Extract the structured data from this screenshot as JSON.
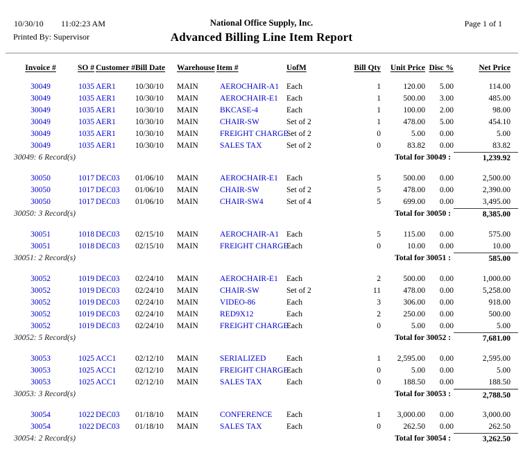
{
  "header": {
    "date": "10/30/10",
    "time": "11:02:23 AM",
    "company": "National Office Supply, Inc.",
    "page_label": "Page 1 of 1",
    "printed_by": "Printed By: Supervisor",
    "title": "Advanced Billing Line Item Report"
  },
  "colors": {
    "link_blue": "#0000CC",
    "divider_gray": "#909090"
  },
  "table": {
    "columns": [
      "Invoice #",
      "SO #",
      "Customer #",
      "Bill Date",
      "Warehouse",
      "Item #",
      "UofM",
      "Bill Qty",
      "Unit Price",
      "Disc %",
      "Net Price"
    ],
    "groups": [
      {
        "invoice": "30049",
        "rows": [
          [
            "30049",
            "1035",
            "AER1",
            "10/30/10",
            "MAIN",
            "AEROCHAIR-A1",
            "Each",
            "1",
            "120.00",
            "5.00",
            "114.00"
          ],
          [
            "30049",
            "1035",
            "AER1",
            "10/30/10",
            "MAIN",
            "AEROCHAIR-E1",
            "Each",
            "1",
            "500.00",
            "3.00",
            "485.00"
          ],
          [
            "30049",
            "1035",
            "AER1",
            "10/30/10",
            "MAIN",
            "BKCASE-4",
            "Each",
            "1",
            "100.00",
            "2.00",
            "98.00"
          ],
          [
            "30049",
            "1035",
            "AER1",
            "10/30/10",
            "MAIN",
            "CHAIR-SW",
            "Set of 2",
            "1",
            "478.00",
            "5.00",
            "454.10"
          ],
          [
            "30049",
            "1035",
            "AER1",
            "10/30/10",
            "MAIN",
            "FREIGHT CHARGE",
            "Set of 2",
            "0",
            "5.00",
            "0.00",
            "5.00"
          ],
          [
            "30049",
            "1035",
            "AER1",
            "10/30/10",
            "MAIN",
            "SALES TAX",
            "Set of 2",
            "0",
            "83.82",
            "0.00",
            "83.82"
          ]
        ],
        "record_count_label": "30049: 6 Record(s)",
        "total_label": "Total for 30049 :",
        "total_value": "1,239.92",
        "total_rule": "thin"
      },
      {
        "invoice": "30050",
        "rows": [
          [
            "30050",
            "1017",
            "DEC03",
            "01/06/10",
            "MAIN",
            "AEROCHAIR-E1",
            "Each",
            "5",
            "500.00",
            "0.00",
            "2,500.00"
          ],
          [
            "30050",
            "1017",
            "DEC03",
            "01/06/10",
            "MAIN",
            "CHAIR-SW",
            "Set of 2",
            "5",
            "478.00",
            "0.00",
            "2,390.00"
          ],
          [
            "30050",
            "1017",
            "DEC03",
            "01/06/10",
            "MAIN",
            "CHAIR-SW4",
            "Set of 4",
            "5",
            "699.00",
            "0.00",
            "3,495.00"
          ]
        ],
        "record_count_label": "30050: 3 Record(s)",
        "total_label": "Total for 30050 :",
        "total_value": "8,385.00",
        "total_rule": "thin"
      },
      {
        "invoice": "30051",
        "rows": [
          [
            "30051",
            "1018",
            "DEC03",
            "02/15/10",
            "MAIN",
            "AEROCHAIR-A1",
            "Each",
            "5",
            "115.00",
            "0.00",
            "575.00"
          ],
          [
            "30051",
            "1018",
            "DEC03",
            "02/15/10",
            "MAIN",
            "FREIGHT CHARGE",
            "Each",
            "0",
            "10.00",
            "0.00",
            "10.00"
          ]
        ],
        "record_count_label": "30051: 2 Record(s)",
        "total_label": "Total for 30051 :",
        "total_value": "585.00",
        "total_rule": "thin"
      },
      {
        "invoice": "30052",
        "rows": [
          [
            "30052",
            "1019",
            "DEC03",
            "02/24/10",
            "MAIN",
            "AEROCHAIR-E1",
            "Each",
            "2",
            "500.00",
            "0.00",
            "1,000.00"
          ],
          [
            "30052",
            "1019",
            "DEC03",
            "02/24/10",
            "MAIN",
            "CHAIR-SW",
            "Set of 2",
            "11",
            "478.00",
            "0.00",
            "5,258.00"
          ],
          [
            "30052",
            "1019",
            "DEC03",
            "02/24/10",
            "MAIN",
            "VIDEO-86",
            "Each",
            "3",
            "306.00",
            "0.00",
            "918.00"
          ],
          [
            "30052",
            "1019",
            "DEC03",
            "02/24/10",
            "MAIN",
            "RED9X12",
            "Each",
            "2",
            "250.00",
            "0.00",
            "500.00"
          ],
          [
            "30052",
            "1019",
            "DEC03",
            "02/24/10",
            "MAIN",
            "FREIGHT CHARGE",
            "Each",
            "0",
            "5.00",
            "0.00",
            "5.00"
          ]
        ],
        "record_count_label": "30052: 5 Record(s)",
        "total_label": "Total for 30052 :",
        "total_value": "7,681.00",
        "total_rule": "thin"
      },
      {
        "invoice": "30053",
        "rows": [
          [
            "30053",
            "1025",
            "ACC1",
            "02/12/10",
            "MAIN",
            "SERIALIZED",
            "Each",
            "1",
            "2,595.00",
            "0.00",
            "2,595.00"
          ],
          [
            "30053",
            "1025",
            "ACC1",
            "02/12/10",
            "MAIN",
            "FREIGHT CHARGE",
            "Each",
            "0",
            "5.00",
            "0.00",
            "5.00"
          ],
          [
            "30053",
            "1025",
            "ACC1",
            "02/12/10",
            "MAIN",
            "SALES TAX",
            "Each",
            "0",
            "188.50",
            "0.00",
            "188.50"
          ]
        ],
        "record_count_label": "30053: 3 Record(s)",
        "total_label": "Total for 30053 :",
        "total_value": "2,788.50",
        "total_rule": "thick"
      },
      {
        "invoice": "30054",
        "rows": [
          [
            "30054",
            "1022",
            "DEC03",
            "01/18/10",
            "MAIN",
            "CONFERENCE",
            "Each",
            "1",
            "3,000.00",
            "0.00",
            "3,000.00"
          ],
          [
            "30054",
            "1022",
            "DEC03",
            "01/18/10",
            "MAIN",
            "SALES TAX",
            "Each",
            "0",
            "262.50",
            "0.00",
            "262.50"
          ]
        ],
        "record_count_label": "30054: 2 Record(s)",
        "total_label": "Total for 30054 :",
        "total_value": "3,262.50",
        "total_rule": "thin"
      }
    ]
  }
}
